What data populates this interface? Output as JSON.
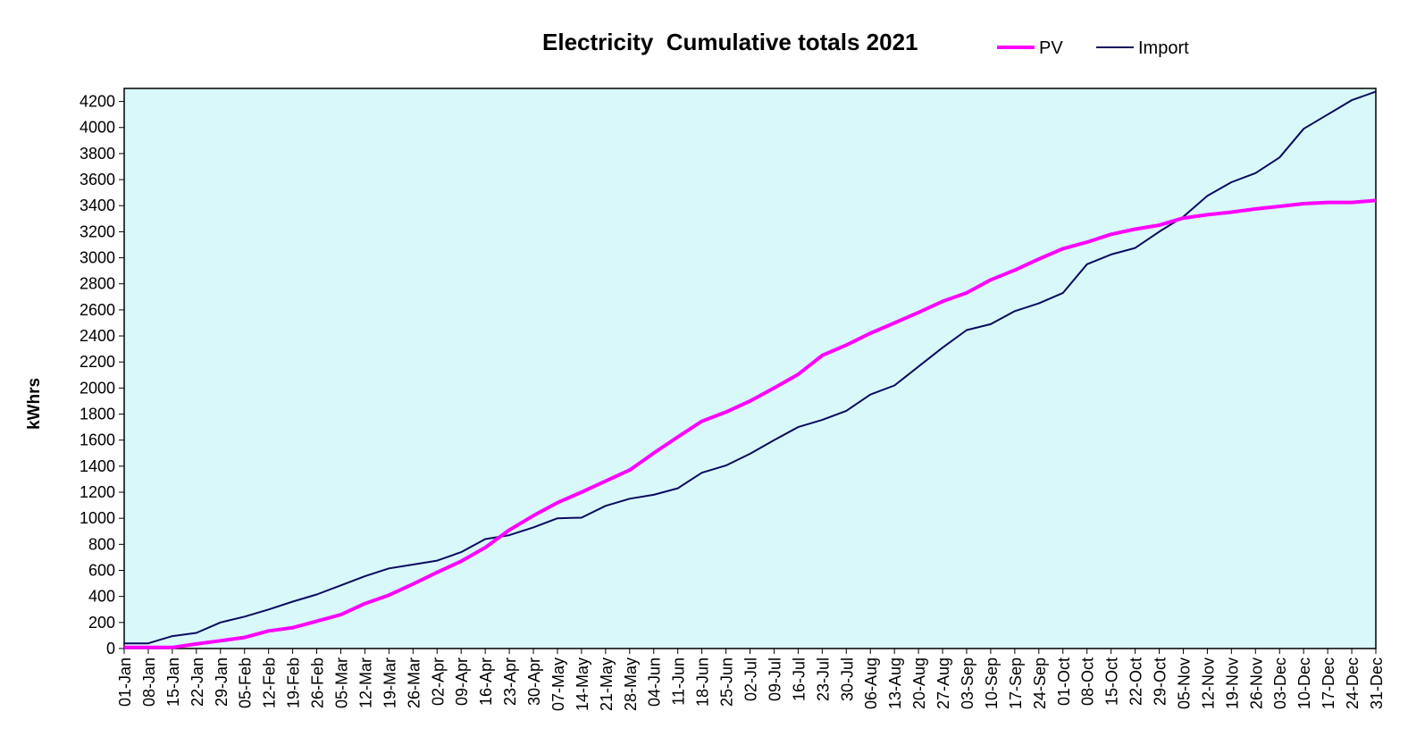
{
  "chart_data": {
    "type": "line",
    "title": "Electricity  Cumulative totals 2021",
    "xlabel": "",
    "ylabel": "kWhrs",
    "ylim": [
      0,
      4300
    ],
    "yticks": [
      0,
      200,
      400,
      600,
      800,
      1000,
      1200,
      1400,
      1600,
      1800,
      2000,
      2200,
      2400,
      2600,
      2800,
      3000,
      3200,
      3400,
      3600,
      3800,
      4000,
      4200
    ],
    "grid": false,
    "legend_position": "top-right",
    "plot_background": "#d9f8fa",
    "categories": [
      "01-Jan",
      "08-Jan",
      "15-Jan",
      "22-Jan",
      "29-Jan",
      "05-Feb",
      "12-Feb",
      "19-Feb",
      "26-Feb",
      "05-Mar",
      "12-Mar",
      "19-Mar",
      "26-Mar",
      "02-Apr",
      "09-Apr",
      "16-Apr",
      "23-Apr",
      "30-Apr",
      "07-May",
      "14-May",
      "21-May",
      "28-May",
      "04-Jun",
      "11-Jun",
      "18-Jun",
      "25-Jun",
      "02-Jul",
      "09-Jul",
      "16-Jul",
      "23-Jul",
      "30-Jul",
      "06-Aug",
      "13-Aug",
      "20-Aug",
      "27-Aug",
      "03-Sep",
      "10-Sep",
      "17-Sep",
      "24-Sep",
      "01-Oct",
      "08-Oct",
      "15-Oct",
      "22-Oct",
      "29-Oct",
      "05-Nov",
      "12-Nov",
      "19-Nov",
      "26-Nov",
      "03-Dec",
      "10-Dec",
      "17-Dec",
      "24-Dec",
      "31-Dec"
    ],
    "series": [
      {
        "name": "PV",
        "color": "#ff00ff",
        "values": [
          8,
          8,
          8,
          35,
          60,
          85,
          135,
          160,
          210,
          260,
          345,
          410,
          495,
          585,
          670,
          775,
          910,
          1020,
          1120,
          1200,
          1285,
          1370,
          1500,
          1625,
          1745,
          1815,
          1900,
          2000,
          2105,
          2250,
          2330,
          2420,
          2500,
          2580,
          2665,
          2730,
          2830,
          2905,
          2990,
          3070,
          3120,
          3180,
          3220,
          3250,
          3305,
          3330,
          3350,
          3375,
          3395,
          3415,
          3425,
          3425,
          3440
        ]
      },
      {
        "name": "Import",
        "color": "#0a0a5e",
        "values": [
          40,
          40,
          95,
          120,
          200,
          245,
          300,
          360,
          415,
          485,
          555,
          615,
          645,
          675,
          740,
          840,
          870,
          930,
          1000,
          1005,
          1095,
          1150,
          1180,
          1230,
          1350,
          1405,
          1495,
          1600,
          1700,
          1755,
          1825,
          1950,
          2020,
          2165,
          2310,
          2445,
          2490,
          2590,
          2650,
          2730,
          2950,
          3025,
          3075,
          3200,
          3315,
          3475,
          3580,
          3650,
          3770,
          3990,
          4100,
          4210,
          4275
        ]
      }
    ]
  }
}
